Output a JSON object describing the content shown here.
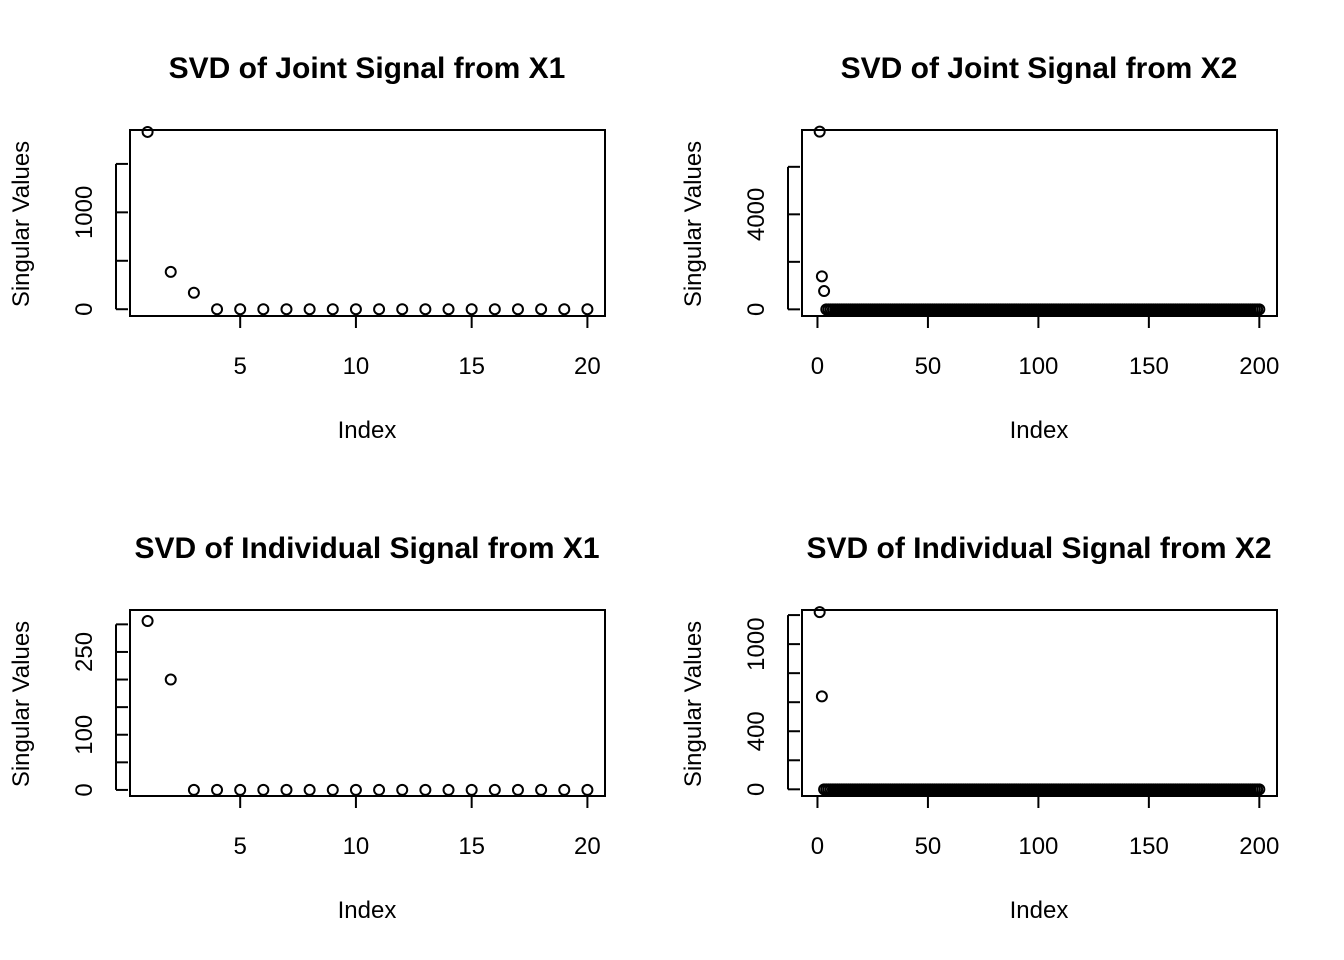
{
  "chart_data": [
    {
      "type": "scatter",
      "title": "SVD of Joint Signal from X1",
      "xlabel": "Index",
      "ylabel": "Singular Values",
      "xlim": [
        0.24,
        20.76
      ],
      "ylim": [
        -70,
        1850
      ],
      "x_ticks": [
        5,
        10,
        15,
        20
      ],
      "y_ticks": [
        0,
        500,
        1000,
        1500
      ],
      "y_tick_labels": [
        "0",
        "",
        "1000",
        ""
      ],
      "grid": false,
      "series": [
        {
          "x": [
            1,
            2,
            3,
            4,
            5,
            6,
            7,
            8,
            9,
            10,
            11,
            12,
            13,
            14,
            15,
            16,
            17,
            18,
            19,
            20
          ],
          "values": [
            1830,
            385,
            170,
            0,
            0,
            0,
            0,
            0,
            0,
            0,
            0,
            0,
            0,
            0,
            0,
            0,
            0,
            0,
            0,
            0
          ]
        }
      ]
    },
    {
      "type": "scatter",
      "title": "SVD of Joint Signal from X2",
      "xlabel": "Index",
      "ylabel": "Singular Values",
      "xlim": [
        -7,
        208
      ],
      "ylim": [
        -280,
        7550
      ],
      "x_ticks": [
        0,
        50,
        100,
        150,
        200
      ],
      "y_ticks": [
        0,
        2000,
        4000,
        6000
      ],
      "y_tick_labels": [
        "0",
        "",
        "4000",
        ""
      ],
      "grid": false,
      "series": [
        {
          "x_range": [
            1,
            200
          ],
          "head_values": [
            7480,
            1390,
            770
          ],
          "tail_value": 0
        }
      ]
    },
    {
      "type": "scatter",
      "title": "SVD of Individual Signal from X1",
      "xlabel": "Index",
      "ylabel": "Singular Values",
      "xlim": [
        0.24,
        20.76
      ],
      "ylim": [
        -11,
        326
      ],
      "x_ticks": [
        5,
        10,
        15,
        20
      ],
      "y_ticks": [
        0,
        50,
        100,
        150,
        200,
        250,
        300
      ],
      "y_tick_labels": [
        "0",
        "",
        "100",
        "",
        "",
        "250",
        ""
      ],
      "grid": false,
      "series": [
        {
          "x": [
            1,
            2,
            3,
            4,
            5,
            6,
            7,
            8,
            9,
            10,
            11,
            12,
            13,
            14,
            15,
            16,
            17,
            18,
            19,
            20
          ],
          "values": [
            306,
            200,
            0,
            0,
            0,
            0,
            0,
            0,
            0,
            0,
            0,
            0,
            0,
            0,
            0,
            0,
            0,
            0,
            0,
            0
          ]
        }
      ]
    },
    {
      "type": "scatter",
      "title": "SVD of Individual Signal from X2",
      "xlabel": "Index",
      "ylabel": "Singular Values",
      "xlim": [
        -7,
        208
      ],
      "ylim": [
        -46,
        1235
      ],
      "x_ticks": [
        0,
        50,
        100,
        150,
        200
      ],
      "y_ticks": [
        0,
        200,
        400,
        600,
        800,
        1000,
        1200
      ],
      "y_tick_labels": [
        "0",
        "",
        "400",
        "",
        "",
        "1000",
        ""
      ],
      "grid": false,
      "series": [
        {
          "x_range": [
            1,
            200
          ],
          "head_values": [
            1220,
            640
          ],
          "tail_value": 0
        }
      ]
    }
  ]
}
